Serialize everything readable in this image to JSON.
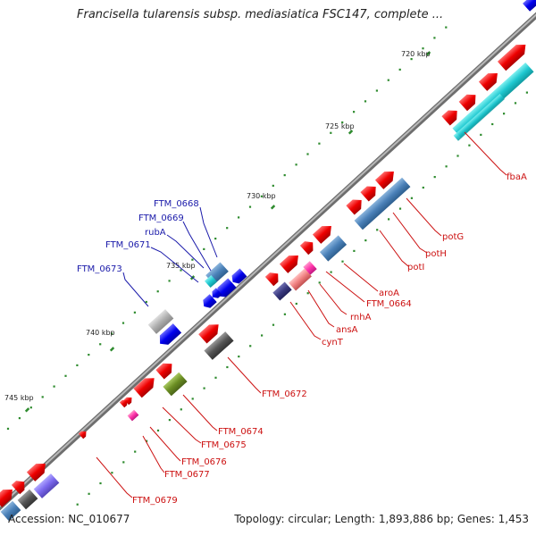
{
  "title": "Francisella tularensis subsp. mediasiatica FSC147, complete ...",
  "footer": {
    "accession": "Accession: NC_010677",
    "summary": "Topology: circular; Length: 1,893,886 bp; Genes: 1,453"
  },
  "ticks": [
    "720 kbp",
    "725 kbp",
    "730 kbp",
    "735 kbp",
    "740 kbp",
    "745 kbp"
  ],
  "genes_inner": [
    "FTM_0668",
    "FTM_0669",
    "rubA",
    "FTM_0671",
    "FTM_0673"
  ],
  "genes_outer": [
    "fbaA",
    "potG",
    "potH",
    "potI",
    "aroA",
    "FTM_0664",
    "rnhA",
    "ansA",
    "cynT",
    "FTM_0672",
    "FTM_0674",
    "FTM_0675",
    "FTM_0676",
    "FTM_0677",
    "FTM_0679"
  ],
  "colors": {
    "backbone": "#8c8c8c",
    "forward_cds": "#ff1a1a",
    "reverse_cds": "#1a1aff",
    "ticks": "#2e8b2e",
    "inner_label": "#1a1aaa",
    "outer_label": "#cc1111",
    "cyan": "#22d0d8",
    "steelblue": "#4a86c0",
    "gray": "#a8a8a8",
    "darkgray": "#555555",
    "olive": "#6b8e23",
    "purple": "#7b68ee",
    "magenta": "#ff33aa"
  }
}
